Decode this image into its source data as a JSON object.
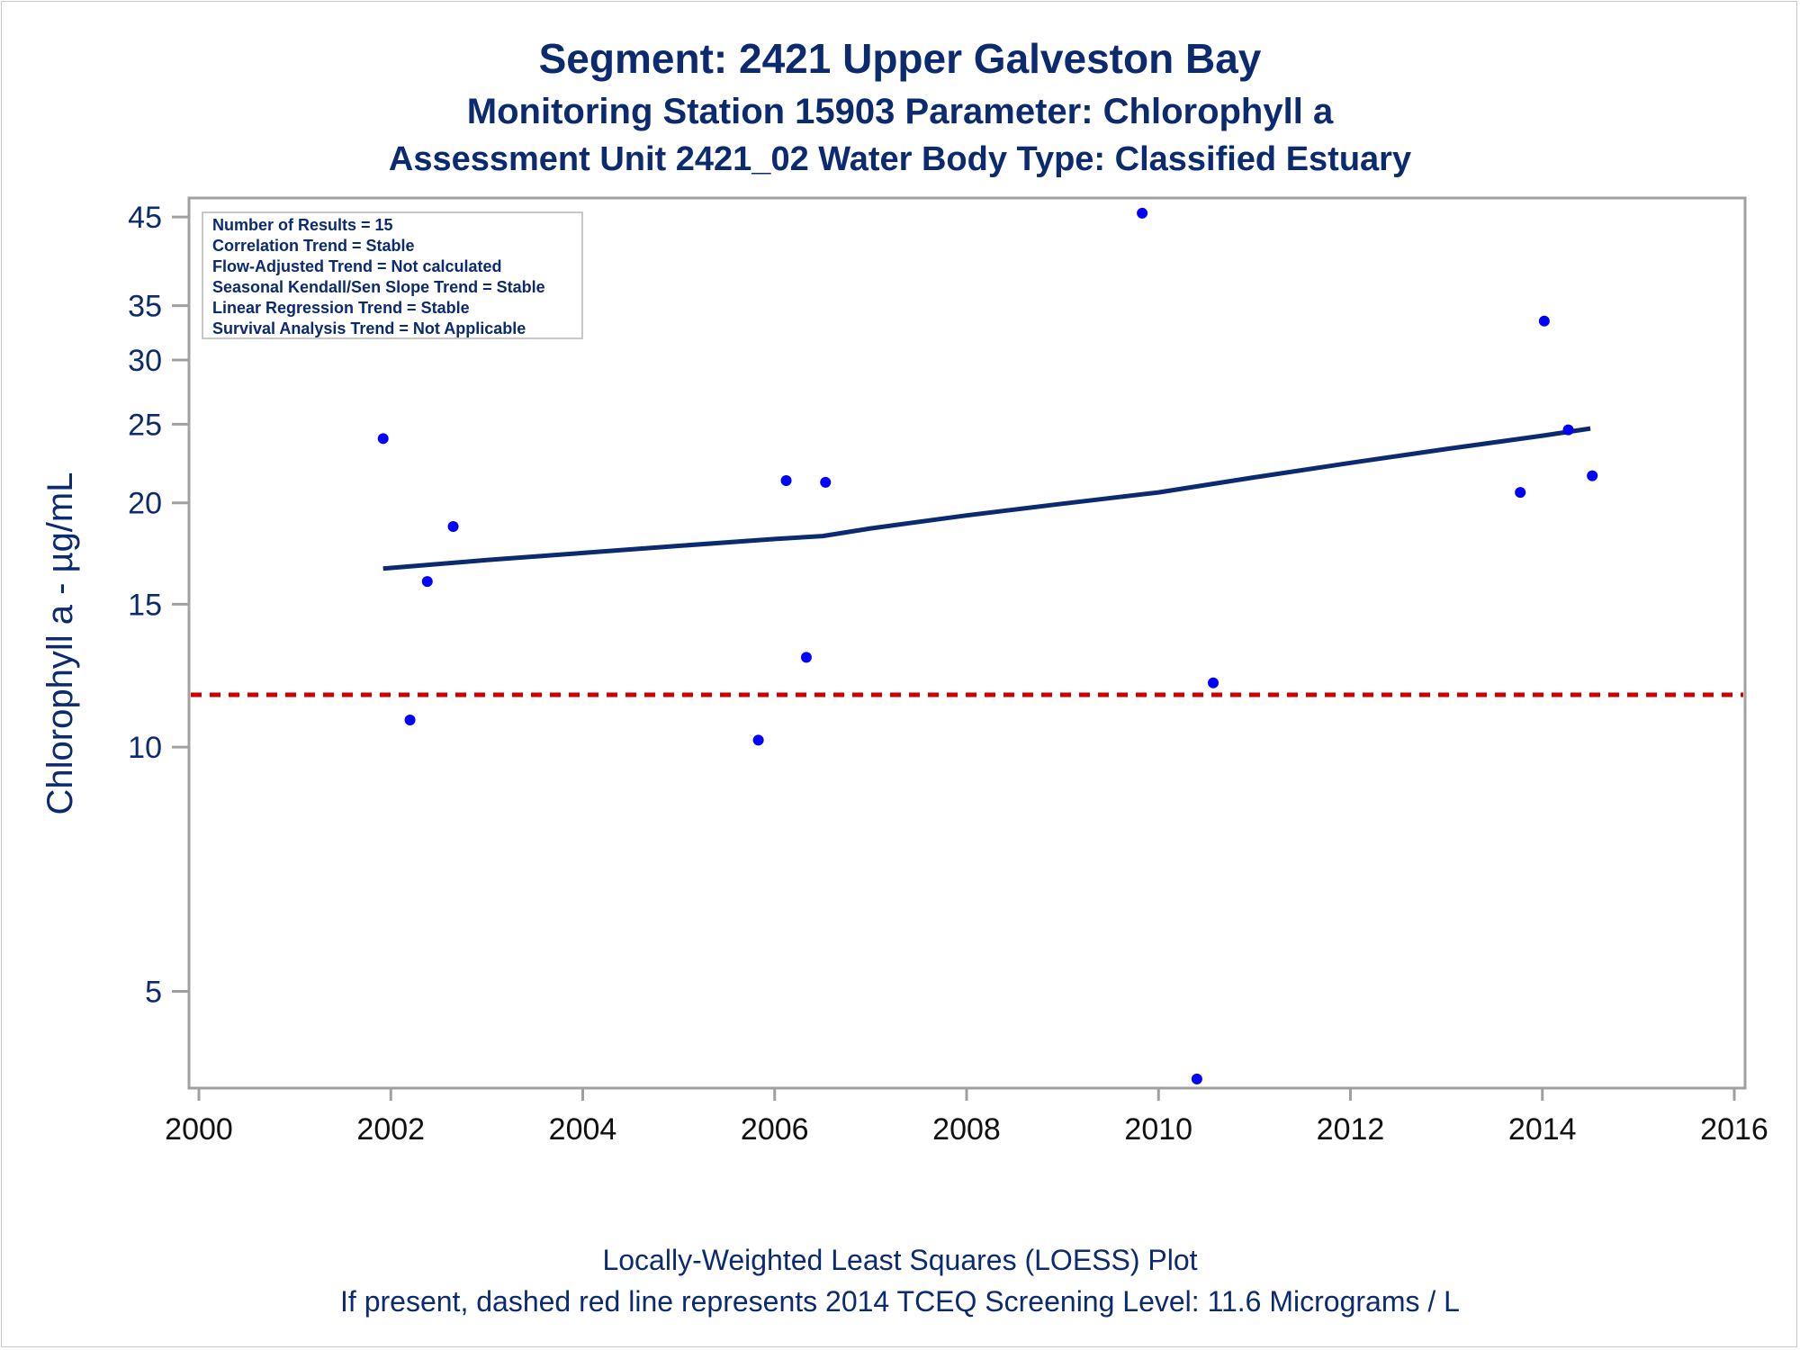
{
  "titles": {
    "line1": "Segment: 2421  Upper Galveston Bay",
    "line2": "Monitoring Station 15903 Parameter: Chlorophyll a",
    "line3": "Assessment Unit 2421_02   Water Body Type: Classified Estuary"
  },
  "footnotes": {
    "line1": "Locally-Weighted Least Squares (LOESS) Plot",
    "line2": "If present, dashed red line represents 2014 TCEQ Screening Level: 11.6 Micrograms / L"
  },
  "stats_box": [
    "Number of Results = 15",
    "Correlation Trend = Stable",
    "Flow-Adjusted Trend = Not calculated",
    "Seasonal Kendall/Sen Slope Trend = Stable",
    "Linear Regression Trend = Stable",
    "Survival Analysis Trend = Not Applicable"
  ],
  "colors": {
    "text": "#0b2a6f",
    "points": "#0000ff",
    "loess_line": "#0b2a6f",
    "screening_line": "#cc0000",
    "frame": "#a0a0a0"
  },
  "chart_data": {
    "type": "scatter",
    "xlabel": "",
    "ylabel": "Chlorophyll a -  µg/mL",
    "x_scale": "linear",
    "y_scale": "log",
    "xlim": [
      2000,
      2016
    ],
    "ylim": [
      3.8,
      47.5
    ],
    "x_ticks": [
      2000,
      2002,
      2004,
      2006,
      2008,
      2010,
      2012,
      2014,
      2016
    ],
    "y_ticks": [
      5,
      10,
      15,
      20,
      25,
      30,
      35,
      45
    ],
    "grid": false,
    "series": [
      {
        "kind": "points",
        "x": [
          2001.92,
          2002.2,
          2002.38,
          2002.65,
          2005.83,
          2006.12,
          2006.33,
          2006.53,
          2009.83,
          2010.4,
          2010.57,
          2013.77,
          2014.02,
          2014.27,
          2014.52
        ],
        "y": [
          24,
          10.8,
          16,
          18.7,
          10.2,
          21.3,
          12.9,
          21.2,
          45.5,
          3.9,
          12,
          20.6,
          33.5,
          24.6,
          21.6
        ]
      },
      {
        "kind": "loess",
        "x": [
          2001.92,
          2003,
          2004,
          2005,
          2006,
          2006.5,
          2007,
          2008,
          2009,
          2010,
          2011,
          2012,
          2013,
          2014,
          2014.5
        ],
        "y": [
          16.6,
          17,
          17.35,
          17.7,
          18.05,
          18.2,
          18.6,
          19.3,
          19.95,
          20.6,
          21.5,
          22.4,
          23.3,
          24.2,
          24.7
        ]
      }
    ],
    "reference_lines": [
      {
        "axis": "y",
        "value": 11.6,
        "style": "dashed",
        "color": "#cc0000"
      }
    ]
  }
}
